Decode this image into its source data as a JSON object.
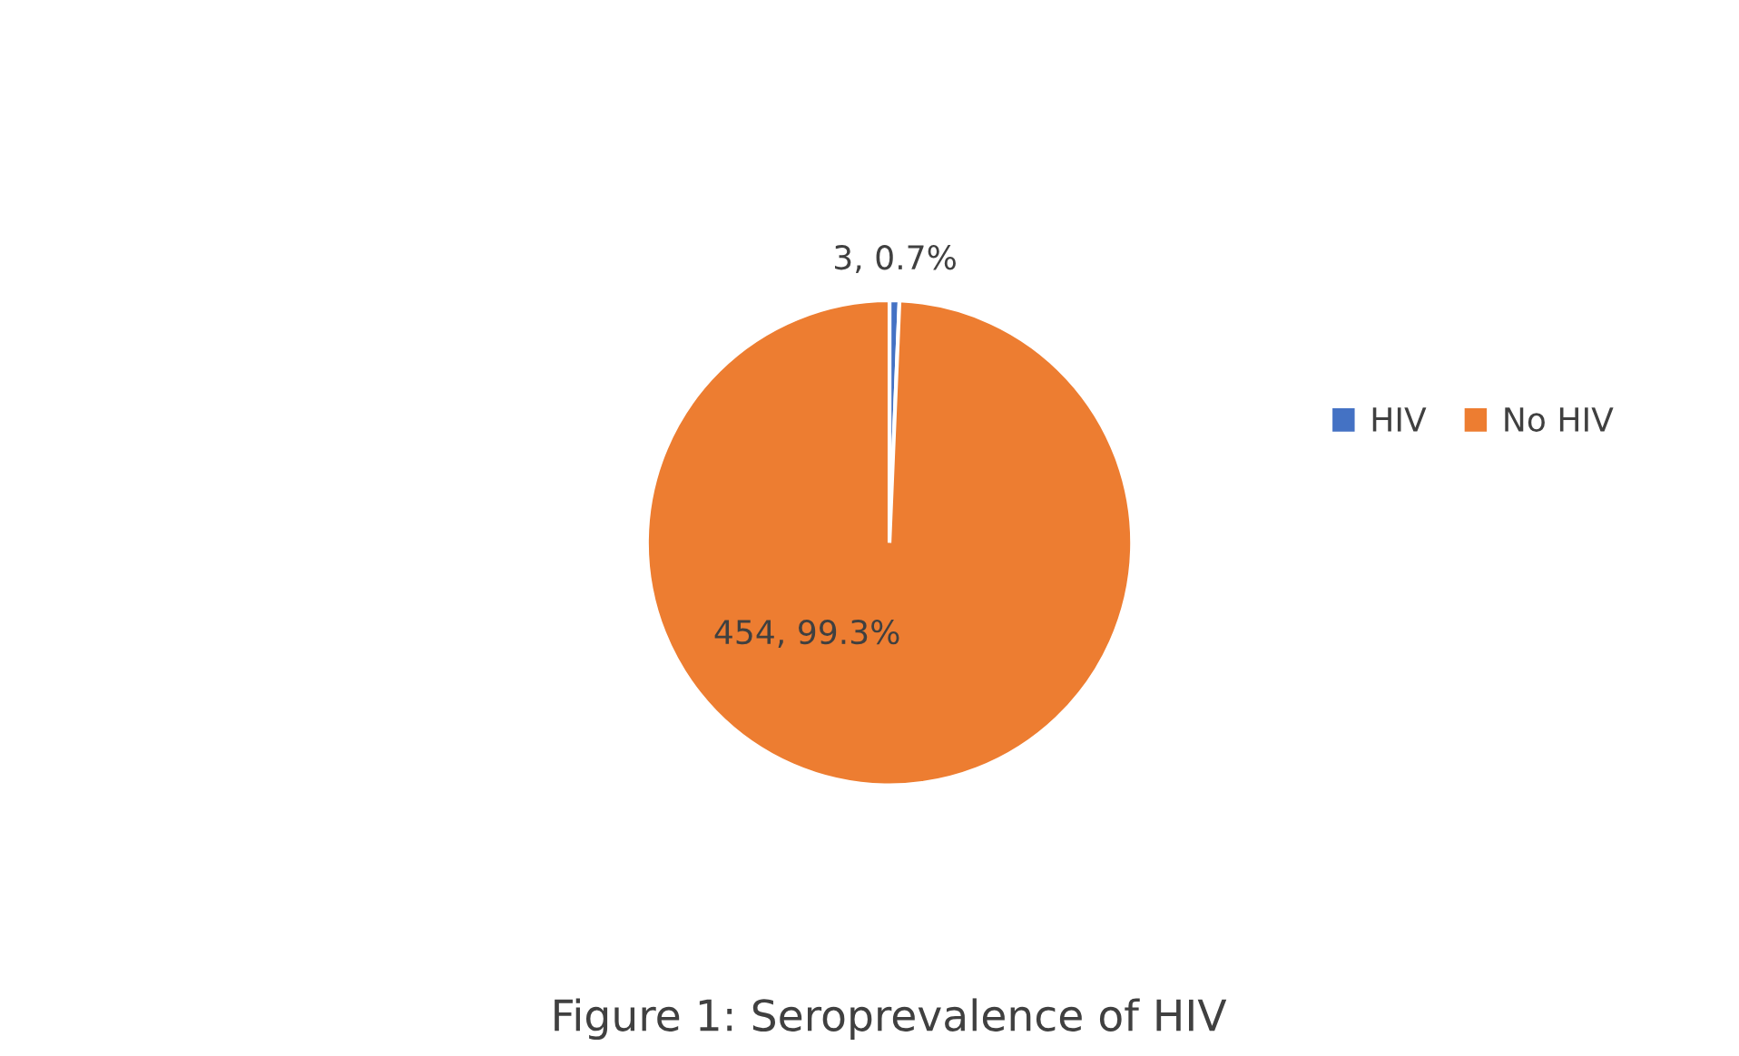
{
  "chart_data": {
    "type": "pie",
    "categories": [
      "HIV",
      "No HIV"
    ],
    "values": [
      3,
      454
    ],
    "colors": [
      "#4472c4",
      "#ed7d31"
    ],
    "value_labels": [
      "3, 0.7%",
      "454, 99.3%"
    ],
    "legend": "right",
    "annotations": [
      "Figure 1: Seroprevalence of HIV"
    ]
  }
}
